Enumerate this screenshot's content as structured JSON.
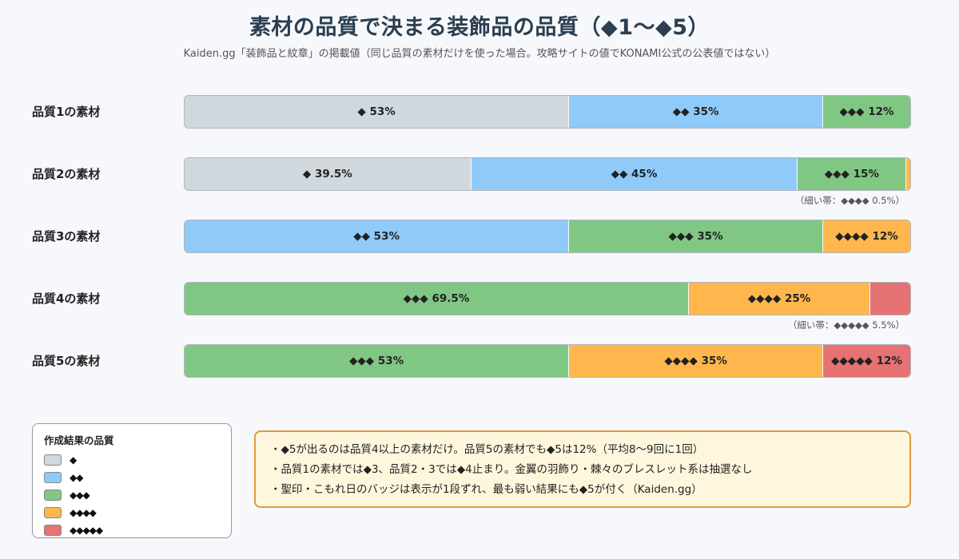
{
  "title": "素材の品質で決まる装飾品の品質（◆1〜◆5）",
  "subtitle": "Kaiden.gg「装飾品と紋章」の掲載値（同じ品質の素材だけを使った場合。攻略サイトの値でKONAMI公式の公表値ではない）",
  "colors": {
    "q1": "#d0d8de",
    "q2": "#90caf9",
    "q3": "#81c784",
    "q4": "#ffb74d",
    "q5": "#e57373"
  },
  "chart_data": {
    "type": "bar",
    "orientation": "horizontal",
    "stacked": true,
    "categories": [
      "品質1の素材",
      "品質2の素材",
      "品質3の素材",
      "品質4の素材",
      "品質5の素材"
    ],
    "series": [
      {
        "name": "◆",
        "values": [
          53,
          39.5,
          0,
          0,
          0
        ]
      },
      {
        "name": "◆◆",
        "values": [
          35,
          45,
          53,
          0,
          0
        ]
      },
      {
        "name": "◆◆◆",
        "values": [
          12,
          15,
          35,
          69.5,
          53
        ]
      },
      {
        "name": "◆◆◆◆",
        "values": [
          0,
          0.5,
          12,
          25,
          35
        ]
      },
      {
        "name": "◆◆◆◆◆",
        "values": [
          0,
          0,
          0,
          5.5,
          12
        ]
      }
    ],
    "xlim": [
      0,
      100
    ],
    "rows": [
      {
        "label": "品質1の素材",
        "segments": [
          {
            "tier": 1,
            "value": 53,
            "label": "◆ 53%"
          },
          {
            "tier": 2,
            "value": 35,
            "label": "◆◆ 35%"
          },
          {
            "tier": 3,
            "value": 12,
            "label": "◆◆◆ 12%"
          }
        ],
        "note": ""
      },
      {
        "label": "品質2の素材",
        "segments": [
          {
            "tier": 1,
            "value": 39.5,
            "label": "◆ 39.5%"
          },
          {
            "tier": 2,
            "value": 45,
            "label": "◆◆ 45%"
          },
          {
            "tier": 3,
            "value": 15,
            "label": "◆◆◆ 15%"
          },
          {
            "tier": 4,
            "value": 0.5,
            "label": ""
          }
        ],
        "note": "（細い帯：◆◆◆◆ 0.5%）"
      },
      {
        "label": "品質3の素材",
        "segments": [
          {
            "tier": 2,
            "value": 53,
            "label": "◆◆ 53%"
          },
          {
            "tier": 3,
            "value": 35,
            "label": "◆◆◆ 35%"
          },
          {
            "tier": 4,
            "value": 12,
            "label": "◆◆◆◆ 12%"
          }
        ],
        "note": ""
      },
      {
        "label": "品質4の素材",
        "segments": [
          {
            "tier": 3,
            "value": 69.5,
            "label": "◆◆◆ 69.5%"
          },
          {
            "tier": 4,
            "value": 25,
            "label": "◆◆◆◆ 25%"
          },
          {
            "tier": 5,
            "value": 5.5,
            "label": ""
          }
        ],
        "note": "（細い帯：◆◆◆◆◆ 5.5%）"
      },
      {
        "label": "品質5の素材",
        "segments": [
          {
            "tier": 3,
            "value": 53,
            "label": "◆◆◆ 53%"
          },
          {
            "tier": 4,
            "value": 35,
            "label": "◆◆◆◆ 35%"
          },
          {
            "tier": 5,
            "value": 12,
            "label": "◆◆◆◆◆ 12%"
          }
        ],
        "note": ""
      }
    ]
  },
  "legend": {
    "title": "作成結果の品質",
    "items": [
      {
        "tier": 1,
        "label": "◆"
      },
      {
        "tier": 2,
        "label": "◆◆"
      },
      {
        "tier": 3,
        "label": "◆◆◆"
      },
      {
        "tier": 4,
        "label": "◆◆◆◆"
      },
      {
        "tier": 5,
        "label": "◆◆◆◆◆"
      }
    ]
  },
  "notes": [
    "・◆5が出るのは品質4以上の素材だけ。品質5の素材でも◆5は12%（平均8〜9回に1回）",
    "・品質1の素材では◆3、品質2・3では◆4止まり。金翼の羽飾り・棘々のブレスレット系は抽選なし",
    "・聖印・こもれ日のバッジは表示が1段ずれ、最も弱い結果にも◆5が付く（Kaiden.gg）"
  ]
}
